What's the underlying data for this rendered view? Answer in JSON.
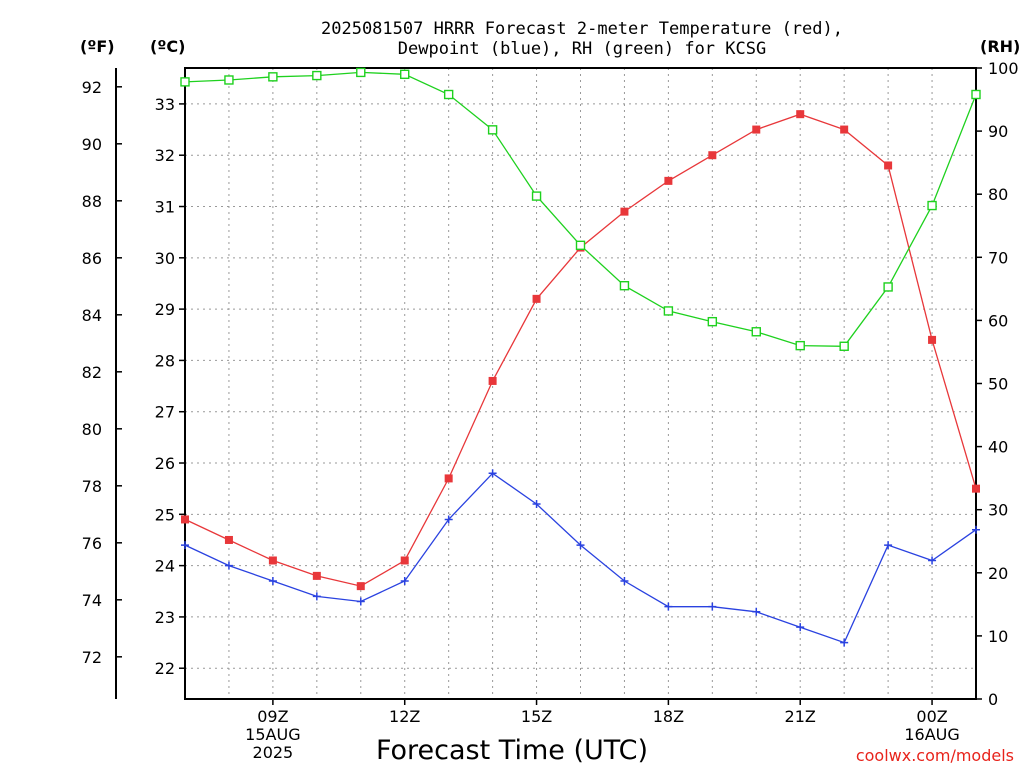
{
  "chart_data": {
    "type": "line",
    "title_lines": [
      "2025081507 HRRR Forecast 2-meter Temperature (red),",
      "Dewpoint (blue), RH (green) for KCSG"
    ],
    "unit_labels": {
      "fahrenheit": "(ºF)",
      "celsius": "(ºC)",
      "rh": "(RH)"
    },
    "xlabel": "Forecast Time (UTC)",
    "credit": "coolwx.com/models",
    "grid": true,
    "x_hours": [
      7,
      8,
      9,
      10,
      11,
      12,
      13,
      14,
      15,
      16,
      17,
      18,
      19,
      20,
      21,
      22,
      23,
      24,
      25
    ],
    "x_range": [
      7,
      25
    ],
    "x_ticks": [
      {
        "hour": 9,
        "lines": [
          "09Z",
          "15AUG",
          "2025"
        ]
      },
      {
        "hour": 12,
        "lines": [
          "12Z"
        ]
      },
      {
        "hour": 15,
        "lines": [
          "15Z"
        ]
      },
      {
        "hour": 18,
        "lines": [
          "18Z"
        ]
      },
      {
        "hour": 21,
        "lines": [
          "21Z"
        ]
      },
      {
        "hour": 24,
        "lines": [
          "00Z",
          "16AUG"
        ]
      }
    ],
    "celsius_range": [
      21.4,
      33.7
    ],
    "celsius_ticks": [
      22,
      23,
      24,
      25,
      26,
      27,
      28,
      29,
      30,
      31,
      32,
      33
    ],
    "fahrenheit_ticks": [
      72,
      74,
      76,
      78,
      80,
      82,
      84,
      86,
      88,
      90,
      92
    ],
    "rh_range": [
      0,
      100
    ],
    "rh_ticks": [
      0,
      10,
      20,
      30,
      40,
      50,
      60,
      70,
      80,
      90,
      100
    ],
    "colors": {
      "temperature": "#e8373a",
      "dewpoint": "#2a42e0",
      "rh": "#1ed11e"
    },
    "series": [
      {
        "name": "Temperature",
        "axis": "celsius",
        "marker": "square-filled",
        "values": [
          24.9,
          24.5,
          24.1,
          23.8,
          23.6,
          24.1,
          25.7,
          27.6,
          29.2,
          30.2,
          30.9,
          31.5,
          32.0,
          32.5,
          32.8,
          32.5,
          31.8,
          28.4,
          25.5
        ]
      },
      {
        "name": "Dewpoint",
        "axis": "celsius",
        "marker": "plus",
        "values": [
          24.4,
          24.0,
          23.7,
          23.4,
          23.3,
          23.7,
          24.9,
          25.8,
          25.2,
          24.4,
          23.7,
          23.2,
          23.2,
          23.1,
          22.8,
          22.5,
          24.4,
          24.1,
          24.7
        ]
      },
      {
        "name": "RH",
        "axis": "rh",
        "marker": "square-open",
        "values": [
          97.8,
          98.1,
          98.6,
          98.8,
          99.3,
          99.0,
          95.8,
          90.2,
          79.7,
          71.9,
          65.5,
          61.5,
          59.8,
          58.2,
          56.0,
          55.9,
          65.3,
          78.2,
          95.8
        ]
      }
    ]
  }
}
